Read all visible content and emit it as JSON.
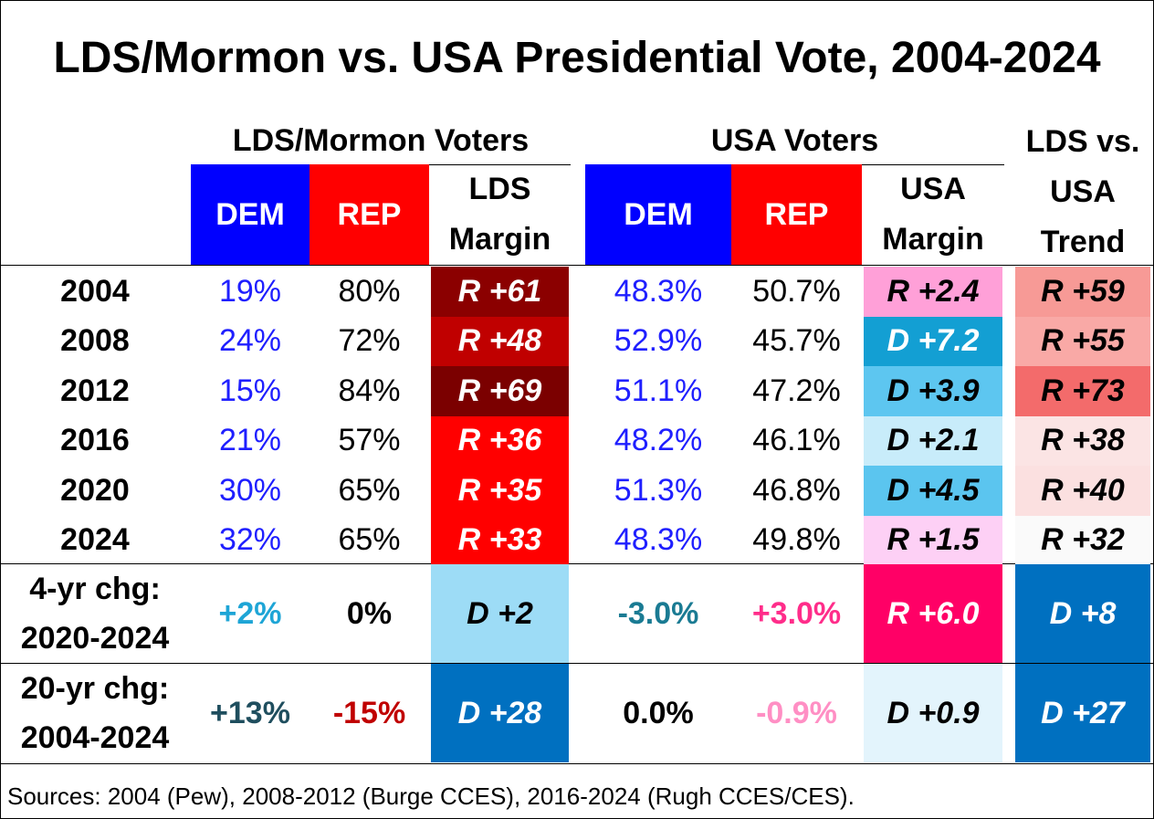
{
  "title": "LDS/Mormon vs. USA Presidential Vote, 2004-2024",
  "groups": {
    "lds": "LDS/Mormon Voters",
    "usa": "USA Voters",
    "trend": "LDS vs.\nUSA\nTrend"
  },
  "columns": {
    "lds_dem": "DEM",
    "lds_rep": "REP",
    "lds_margin": "LDS\nMargin",
    "usa_dem": "DEM",
    "usa_rep": "REP",
    "usa_margin": "USA\nMargin"
  },
  "colors": {
    "dem_header": "#0000ff",
    "rep_header": "#ff0000",
    "dem_text": "#1f1fff"
  },
  "chart_data": {
    "type": "table",
    "title": "LDS/Mormon vs. USA Presidential Vote, 2004-2024",
    "rows": [
      {
        "year": "2004",
        "lds_dem": "19%",
        "lds_rep": "80%",
        "lds_margin": "R +61",
        "usa_dem": "48.3%",
        "usa_rep": "50.7%",
        "usa_margin": "R +2.4",
        "trend": "R +59",
        "fills": {
          "lds_margin": "#8b0000",
          "usa_margin": "#ffa0d8",
          "trend": "#f79a96"
        },
        "colors": {
          "lds_margin": "#ffffff",
          "usa_margin": "#000000",
          "trend": "#000000"
        }
      },
      {
        "year": "2008",
        "lds_dem": "24%",
        "lds_rep": "72%",
        "lds_margin": "R +48",
        "usa_dem": "52.9%",
        "usa_rep": "45.7%",
        "usa_margin": "D +7.2",
        "trend": "R +55",
        "fills": {
          "lds_margin": "#c00000",
          "usa_margin": "#139fd3",
          "trend": "#f9a9a6"
        },
        "colors": {
          "lds_margin": "#ffffff",
          "usa_margin": "#ffffff",
          "trend": "#000000"
        }
      },
      {
        "year": "2012",
        "lds_dem": "15%",
        "lds_rep": "84%",
        "lds_margin": "R +69",
        "usa_dem": "51.1%",
        "usa_rep": "47.2%",
        "usa_margin": "D +3.9",
        "trend": "R +73",
        "fills": {
          "lds_margin": "#7b0000",
          "usa_margin": "#5dc6f0",
          "trend": "#f36b6b"
        },
        "colors": {
          "lds_margin": "#ffffff",
          "usa_margin": "#000000",
          "trend": "#000000"
        }
      },
      {
        "year": "2016",
        "lds_dem": "21%",
        "lds_rep": "57%",
        "lds_margin": "R +36",
        "usa_dem": "48.2%",
        "usa_rep": "46.1%",
        "usa_margin": "D +2.1",
        "trend": "R +38",
        "fills": {
          "lds_margin": "#ff0000",
          "usa_margin": "#c8ecfa",
          "trend": "#fbe4e4"
        },
        "colors": {
          "lds_margin": "#ffffff",
          "usa_margin": "#000000",
          "trend": "#000000"
        }
      },
      {
        "year": "2020",
        "lds_dem": "30%",
        "lds_rep": "65%",
        "lds_margin": "R +35",
        "usa_dem": "51.3%",
        "usa_rep": "46.8%",
        "usa_margin": "D +4.5",
        "trend": "R +40",
        "fills": {
          "lds_margin": "#ff0000",
          "usa_margin": "#5bc5ef",
          "trend": "#fbe0e0"
        },
        "colors": {
          "lds_margin": "#ffffff",
          "usa_margin": "#000000",
          "trend": "#000000"
        }
      },
      {
        "year": "2024",
        "lds_dem": "32%",
        "lds_rep": "65%",
        "lds_margin": "R +33",
        "usa_dem": "48.3%",
        "usa_rep": "49.8%",
        "usa_margin": "R +1.5",
        "trend": "R +32",
        "fills": {
          "lds_margin": "#ff0000",
          "usa_margin": "#fdd0f5",
          "trend": "#fafafa"
        },
        "colors": {
          "lds_margin": "#ffffff",
          "usa_margin": "#000000",
          "trend": "#000000"
        }
      }
    ],
    "changes": [
      {
        "label": "4-yr chg:\n2020-2024",
        "lds_dem": "+2%",
        "lds_rep": "0%",
        "lds_margin": "D +2",
        "usa_dem": "-3.0%",
        "usa_rep": "+3.0%",
        "usa_margin": "R +6.0",
        "trend": "D +8",
        "text_colors": {
          "lds_dem": "#1ea5d6",
          "lds_rep": "#000000",
          "usa_dem": "#1a7b93",
          "usa_rep": "#ff2d8a"
        },
        "fills": {
          "lds_margin": "#9ddcf6",
          "usa_margin": "#ff0066",
          "trend": "#0070c0"
        },
        "colors": {
          "lds_margin": "#000000",
          "usa_margin": "#ffffff",
          "trend": "#ffffff"
        }
      },
      {
        "label": "20-yr chg:\n2004-2024",
        "lds_dem": "+13%",
        "lds_rep": "-15%",
        "lds_margin": "D +28",
        "usa_dem": "0.0%",
        "usa_rep": "-0.9%",
        "usa_margin": "D +0.9",
        "trend": "D +27",
        "text_colors": {
          "lds_dem": "#1f4e5e",
          "lds_rep": "#c00000",
          "usa_dem": "#000000",
          "usa_rep": "#ff8fc4"
        },
        "fills": {
          "lds_margin": "#0070c0",
          "usa_margin": "#e3f4fc",
          "trend": "#0070c0"
        },
        "colors": {
          "lds_margin": "#ffffff",
          "usa_margin": "#000000",
          "trend": "#ffffff"
        }
      }
    ]
  },
  "sources": "Sources: 2004 (Pew), 2008-2012 (Burge CCES), 2016-2024 (Rugh CCES/CES)."
}
